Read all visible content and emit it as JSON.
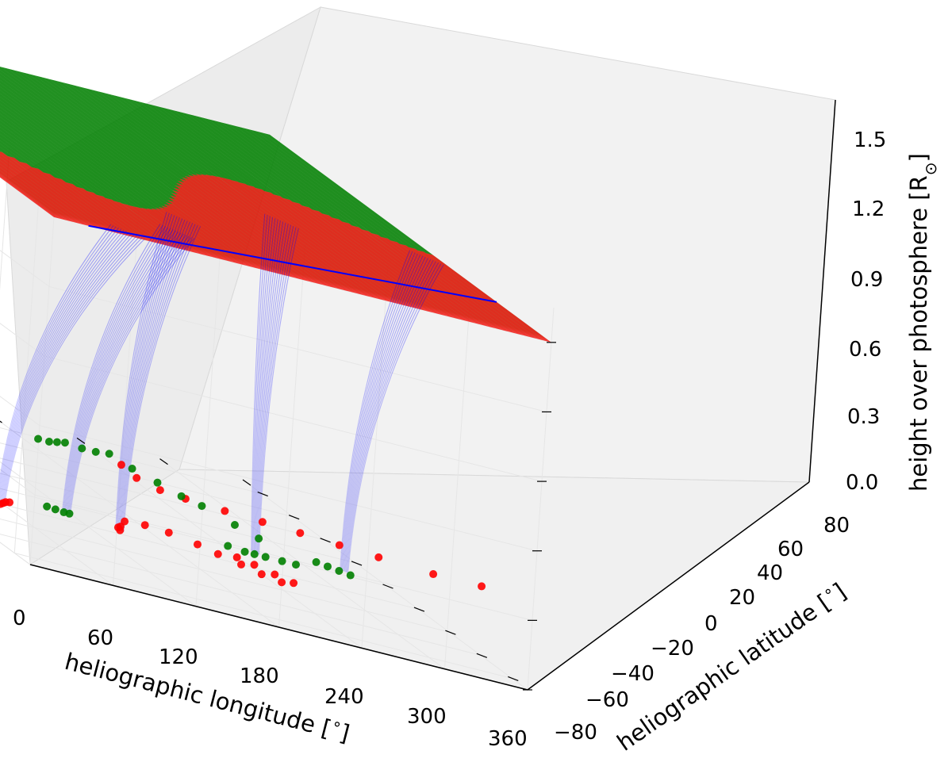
{
  "chart_data": {
    "type": "scatter",
    "projection": "3d",
    "title": "",
    "xlabel": "heliographic longitude [$^\\circ$]",
    "ylabel": "heliographic latitude [$^\\circ$]",
    "zlabel": "height over photosphere [R$_\\odot$]",
    "xlabel_text": {
      "before": "heliographic longitude [",
      "sup": "∘",
      "after": "]"
    },
    "ylabel_text": {
      "before": "heliographic latitude [",
      "sup": "∘",
      "after": "]"
    },
    "zlabel_text": {
      "before": "height over photosphere [R",
      "sub": "⊙",
      "after": "]"
    },
    "xlim": [
      0,
      360
    ],
    "ylim": [
      -90,
      90
    ],
    "zlim": [
      0,
      1.65
    ],
    "xticks": [
      "0",
      "60",
      "120",
      "180",
      "240",
      "300",
      "360"
    ],
    "yticks": [
      "−80",
      "−60",
      "−40",
      "−20",
      "0",
      "20",
      "40",
      "60",
      "80"
    ],
    "zticks": [
      "0.0",
      "0.3",
      "0.6",
      "0.9",
      "1.2",
      "1.5"
    ],
    "grid": true,
    "source_surface": {
      "height": 1.5,
      "colors": {
        "positive": "#ff0000",
        "negative": "#008000"
      }
    },
    "colors": {
      "field_lines": "#0000ff",
      "red_points": "#ff0000",
      "green_points": "#008000",
      "pane": "#f2f2f2",
      "grid": "#e6e6e6"
    },
    "series": [
      {
        "kind": "closed-field-footpoints-positive",
        "points": [
          [
            58,
            20,
            0
          ],
          [
            62,
            18,
            0
          ],
          [
            66,
            16,
            0
          ],
          [
            70,
            15,
            0
          ],
          [
            122,
            37,
            0.35
          ],
          [
            130,
            40,
            0.32
          ],
          [
            145,
            42,
            0.3
          ],
          [
            160,
            45,
            0.3
          ],
          [
            185,
            48,
            0.3
          ],
          [
            210,
            50,
            0.3
          ],
          [
            235,
            52,
            0.3
          ],
          [
            260,
            55,
            0.3
          ],
          [
            285,
            58,
            0.3
          ],
          [
            320,
            62,
            0.3
          ],
          [
            355,
            62,
            0.3
          ],
          [
            150,
            15,
            0
          ],
          [
            152,
            12,
            0
          ],
          [
            156,
            10,
            0
          ],
          [
            168,
            2,
            0
          ],
          [
            185,
            0,
            0
          ],
          [
            200,
            2,
            0
          ],
          [
            214,
            8,
            0
          ],
          [
            222,
            14,
            0
          ],
          [
            232,
            20,
            0
          ],
          [
            240,
            26,
            0
          ],
          [
            250,
            30,
            0
          ],
          [
            238,
            12,
            0
          ],
          [
            246,
            16,
            0
          ],
          [
            254,
            22,
            0
          ],
          [
            262,
            27,
            0
          ]
        ]
      },
      {
        "kind": "open-field-footpoints-negative",
        "points": [
          [
            105,
            8,
            0
          ],
          [
            110,
            9,
            0
          ],
          [
            115,
            10,
            0
          ],
          [
            119,
            10,
            0
          ],
          [
            22,
            -28,
            0
          ],
          [
            25,
            -25,
            0
          ],
          [
            42,
            -32,
            0
          ],
          [
            44,
            -32,
            0
          ],
          [
            58,
            -40,
            0
          ],
          [
            245,
            0,
            0
          ],
          [
            255,
            2,
            0
          ],
          [
            262,
            2,
            0
          ],
          [
            270,
            2,
            0
          ],
          [
            282,
            2,
            0
          ],
          [
            292,
            2,
            0
          ],
          [
            318,
            -8,
            0
          ],
          [
            324,
            -6,
            0
          ],
          [
            330,
            -4,
            0
          ],
          [
            336,
            -2,
            0
          ],
          [
            196,
            -78,
            0
          ],
          [
            204,
            -78,
            0
          ],
          [
            212,
            -80,
            0
          ],
          [
            220,
            -82,
            0
          ],
          [
            230,
            -80,
            0
          ],
          [
            240,
            -80,
            0
          ],
          [
            252,
            -82,
            0
          ],
          [
            255,
            -70,
            0
          ],
          [
            262,
            -60,
            0
          ],
          [
            268,
            -50,
            0
          ],
          [
            276,
            -44,
            0
          ],
          [
            284,
            -30,
            0
          ],
          [
            290,
            -20,
            0
          ]
        ]
      }
    ],
    "field_lines": [
      {
        "from": [
          58,
          20,
          0
        ],
        "to": [
          60,
          85,
          1.5
        ]
      },
      {
        "from": [
          117,
          10,
          0
        ],
        "to": [
          115,
          68,
          1.5
        ]
      },
      {
        "from": [
          150,
          15,
          0
        ],
        "to": [
          140,
          50,
          1.5
        ]
      },
      {
        "from": [
          265,
          0,
          0
        ],
        "to": [
          245,
          20,
          1.5
        ]
      },
      {
        "from": [
          335,
          -5,
          0
        ],
        "to": [
          350,
          20,
          1.5
        ]
      }
    ],
    "current_sheet_line": {
      "from": [
        25,
        90,
        1.5
      ],
      "to": [
        360,
        55,
        1.5
      ]
    }
  }
}
